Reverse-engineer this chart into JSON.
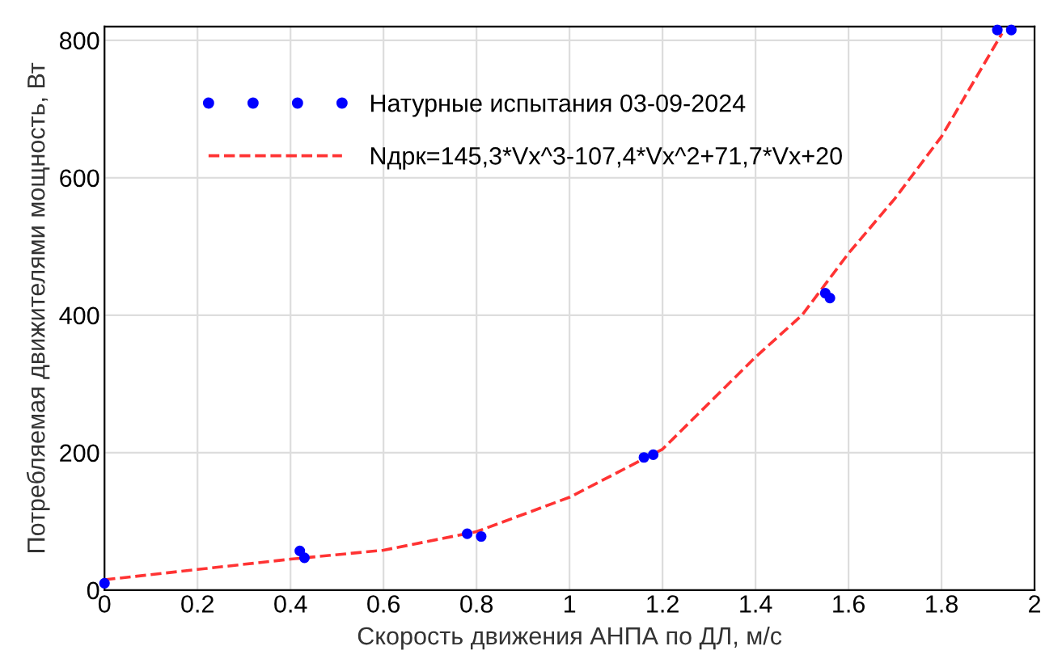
{
  "chart_data": {
    "type": "scatter",
    "xlabel": "Скорость движения АНПА по ДЛ, м/с",
    "ylabel": "Потребляемая движителями мощность, Вт",
    "xlim": [
      0,
      2
    ],
    "xticks": [
      0,
      0.2,
      0.4,
      0.6,
      0.8,
      1,
      1.2,
      1.4,
      1.6,
      1.8,
      2
    ],
    "ylim": [
      0,
      820
    ],
    "yticks": [
      0,
      200,
      400,
      600,
      800
    ],
    "grid": true,
    "legend": "top left",
    "marker": "circle",
    "series": [
      {
        "name": "Натурные испытания 03-09-2024",
        "color": "#0000ff",
        "x": [
          0,
          0.42,
          0.43,
          0.78,
          0.81,
          1.16,
          1.18,
          1.55,
          1.56,
          1.92,
          1.95
        ],
        "values": [
          10,
          57,
          47,
          82,
          78,
          193,
          197,
          432,
          425,
          815,
          815
        ]
      },
      {
        "name": "Nдрк=145,3*Vx^3-107,4*Vx^2+71,7*Vx+20",
        "type": "line",
        "color": "#ff3333",
        "line_style": "dashed",
        "marker": "none",
        "x": [
          0,
          0.2,
          0.4,
          0.6,
          0.8,
          1.0,
          1.2,
          1.4,
          1.5,
          1.6,
          1.7,
          1.8,
          1.93
        ],
        "values": [
          15,
          30,
          45,
          58,
          85,
          135,
          205,
          339,
          400,
          490,
          570,
          660,
          810
        ]
      }
    ]
  }
}
